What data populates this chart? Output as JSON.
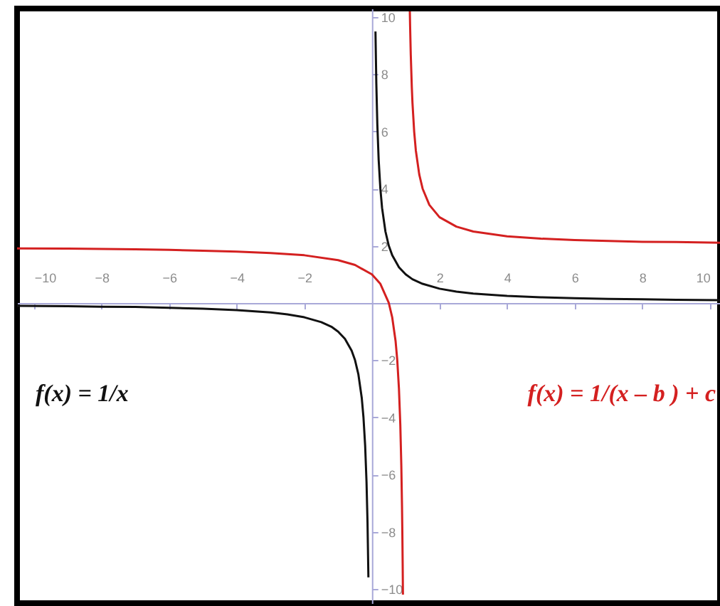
{
  "chart_data": {
    "type": "line",
    "xlim": [
      -10.5,
      10.3
    ],
    "ylim": [
      -10.5,
      10.3
    ],
    "xticks": [
      -10,
      -8,
      -6,
      -4,
      -2,
      2,
      4,
      6,
      8,
      10
    ],
    "yticks": [
      -10,
      -8,
      -6,
      -4,
      -2,
      2,
      4,
      6,
      8,
      10
    ],
    "series": [
      {
        "name": "f(x) = 1/x",
        "color": "#111111",
        "x": [
          -10.5,
          -9,
          -8,
          -7,
          -6,
          -5,
          -4,
          -3,
          -2.5,
          -2,
          -1.5,
          -1.2,
          -1,
          -0.8,
          -0.6,
          -0.5,
          -0.4,
          -0.3,
          -0.25,
          -0.2,
          -0.16,
          -0.13,
          -0.104,
          0,
          0.105,
          0.13,
          0.16,
          0.2,
          0.25,
          0.3,
          0.4,
          0.5,
          0.6,
          0.8,
          1,
          1.2,
          1.5,
          2,
          2.5,
          3,
          4,
          5,
          6,
          7,
          8,
          9,
          10.3
        ],
        "values": [
          -0.1,
          -0.11,
          -0.13,
          -0.14,
          -0.17,
          -0.2,
          -0.25,
          -0.33,
          -0.4,
          -0.5,
          -0.67,
          -0.83,
          -1,
          -1.25,
          -1.67,
          -2,
          -2.5,
          -3.33,
          -4,
          -5,
          -6.25,
          -7.69,
          -9.6,
          null,
          9.5,
          7.69,
          6.25,
          5,
          4,
          3.33,
          2.5,
          2,
          1.67,
          1.25,
          1,
          0.83,
          0.67,
          0.5,
          0.4,
          0.33,
          0.25,
          0.2,
          0.17,
          0.14,
          0.13,
          0.11,
          0.1
        ]
      },
      {
        "name": "f(x) = 1/(x – b ) + c",
        "color": "#d42020",
        "x": [
          -10.5,
          -9,
          -8,
          -7,
          -6,
          -5,
          -4,
          -3,
          -2,
          -1,
          -0.5,
          0,
          0.25,
          0.5,
          0.6,
          0.7,
          0.75,
          0.8,
          0.84,
          0.87,
          0.89,
          0.9,
          0.91,
          0.918,
          1,
          1.122,
          1.13,
          1.15,
          1.18,
          1.2,
          1.25,
          1.3,
          1.4,
          1.5,
          1.7,
          2,
          2.5,
          3,
          4,
          5,
          6,
          7,
          8,
          9,
          10.3
        ],
        "values": [
          1.91,
          1.9,
          1.89,
          1.88,
          1.86,
          1.83,
          1.8,
          1.75,
          1.67,
          1.5,
          1.33,
          1,
          0.67,
          0,
          -0.5,
          -1.33,
          -2,
          -3,
          -4.25,
          -5.69,
          -7.09,
          -8,
          -9.11,
          -10.2,
          null,
          10.2,
          9.69,
          8.67,
          7.56,
          7,
          6,
          5.33,
          4.5,
          4,
          3.43,
          3,
          2.67,
          2.5,
          2.33,
          2.25,
          2.2,
          2.17,
          2.14,
          2.13,
          2.11
        ]
      }
    ]
  }
}
